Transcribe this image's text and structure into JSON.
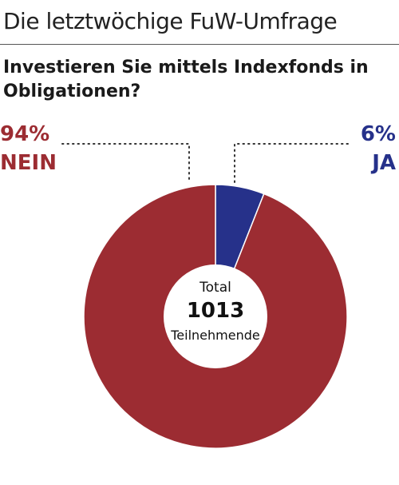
{
  "header": {
    "title": "Die letztwöchige FuW-Umfrage"
  },
  "question": "Investieren Sie mittels Indexfonds in Obligationen?",
  "center": {
    "top": "Total",
    "total": "1013",
    "bottom": "Teilnehmende"
  },
  "legend": {
    "nein_pct": "94%",
    "nein_label": "NEIN",
    "ja_pct": "6%",
    "ja_label": "JA"
  },
  "chart_data": {
    "type": "pie",
    "labels": [
      "JA",
      "NEIN"
    ],
    "values": [
      6,
      94
    ],
    "colors": [
      "#26318a",
      "#9c2c32"
    ],
    "total": 1013
  }
}
